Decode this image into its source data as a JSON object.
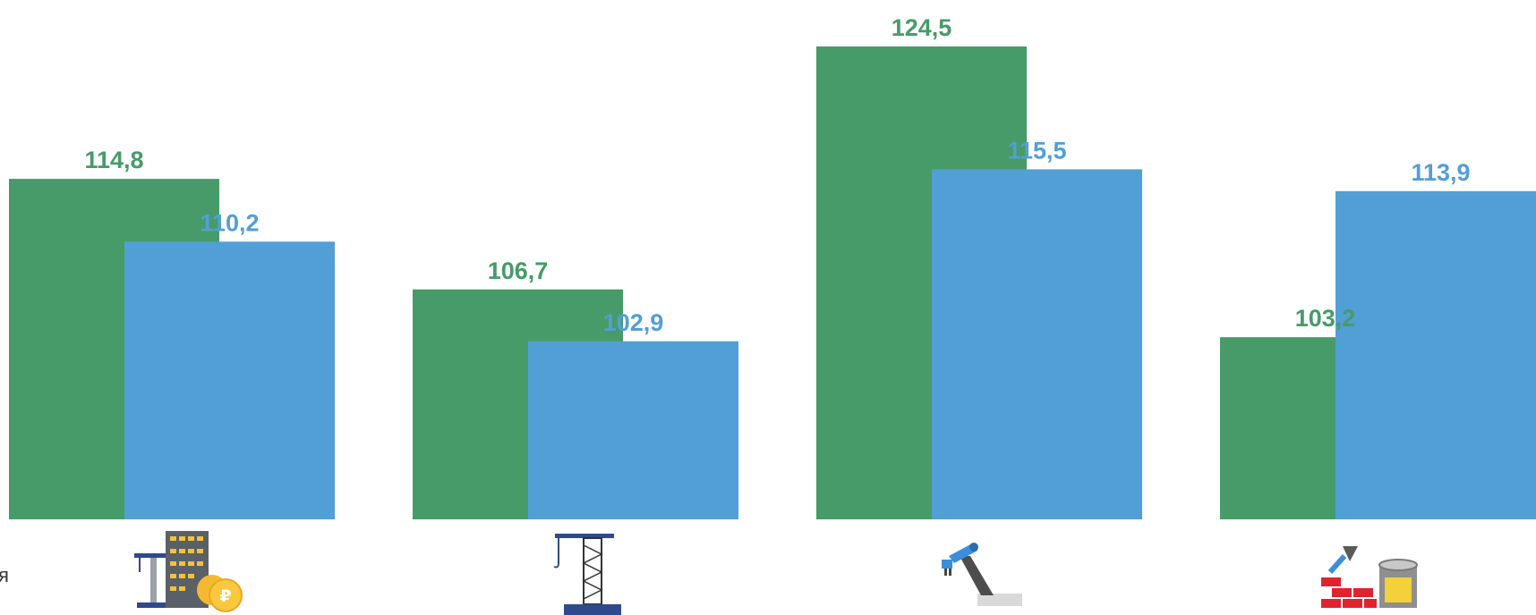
{
  "colors": {
    "series_1": "#469b68",
    "series_2": "#529fd6"
  },
  "stray_text": "я",
  "chart_data": {
    "type": "bar",
    "categories": [
      "",
      "",
      "",
      ""
    ],
    "category_icons": [
      "construction-finance-icon",
      "tower-crane-icon",
      "robotic-arm-icon",
      "building-materials-icon"
    ],
    "series": [
      {
        "values": [
          114.8,
          106.7,
          124.5,
          103.2
        ],
        "labels": [
          "114,8",
          "106,7",
          "124,5",
          "103,2"
        ]
      },
      {
        "values": [
          110.2,
          102.9,
          115.5,
          113.9
        ],
        "labels": [
          "110,2",
          "102,9",
          "115,5",
          "113,9"
        ]
      }
    ],
    "ylim": [
      89.85,
      124.5
    ],
    "grid": false,
    "legend": "none"
  }
}
